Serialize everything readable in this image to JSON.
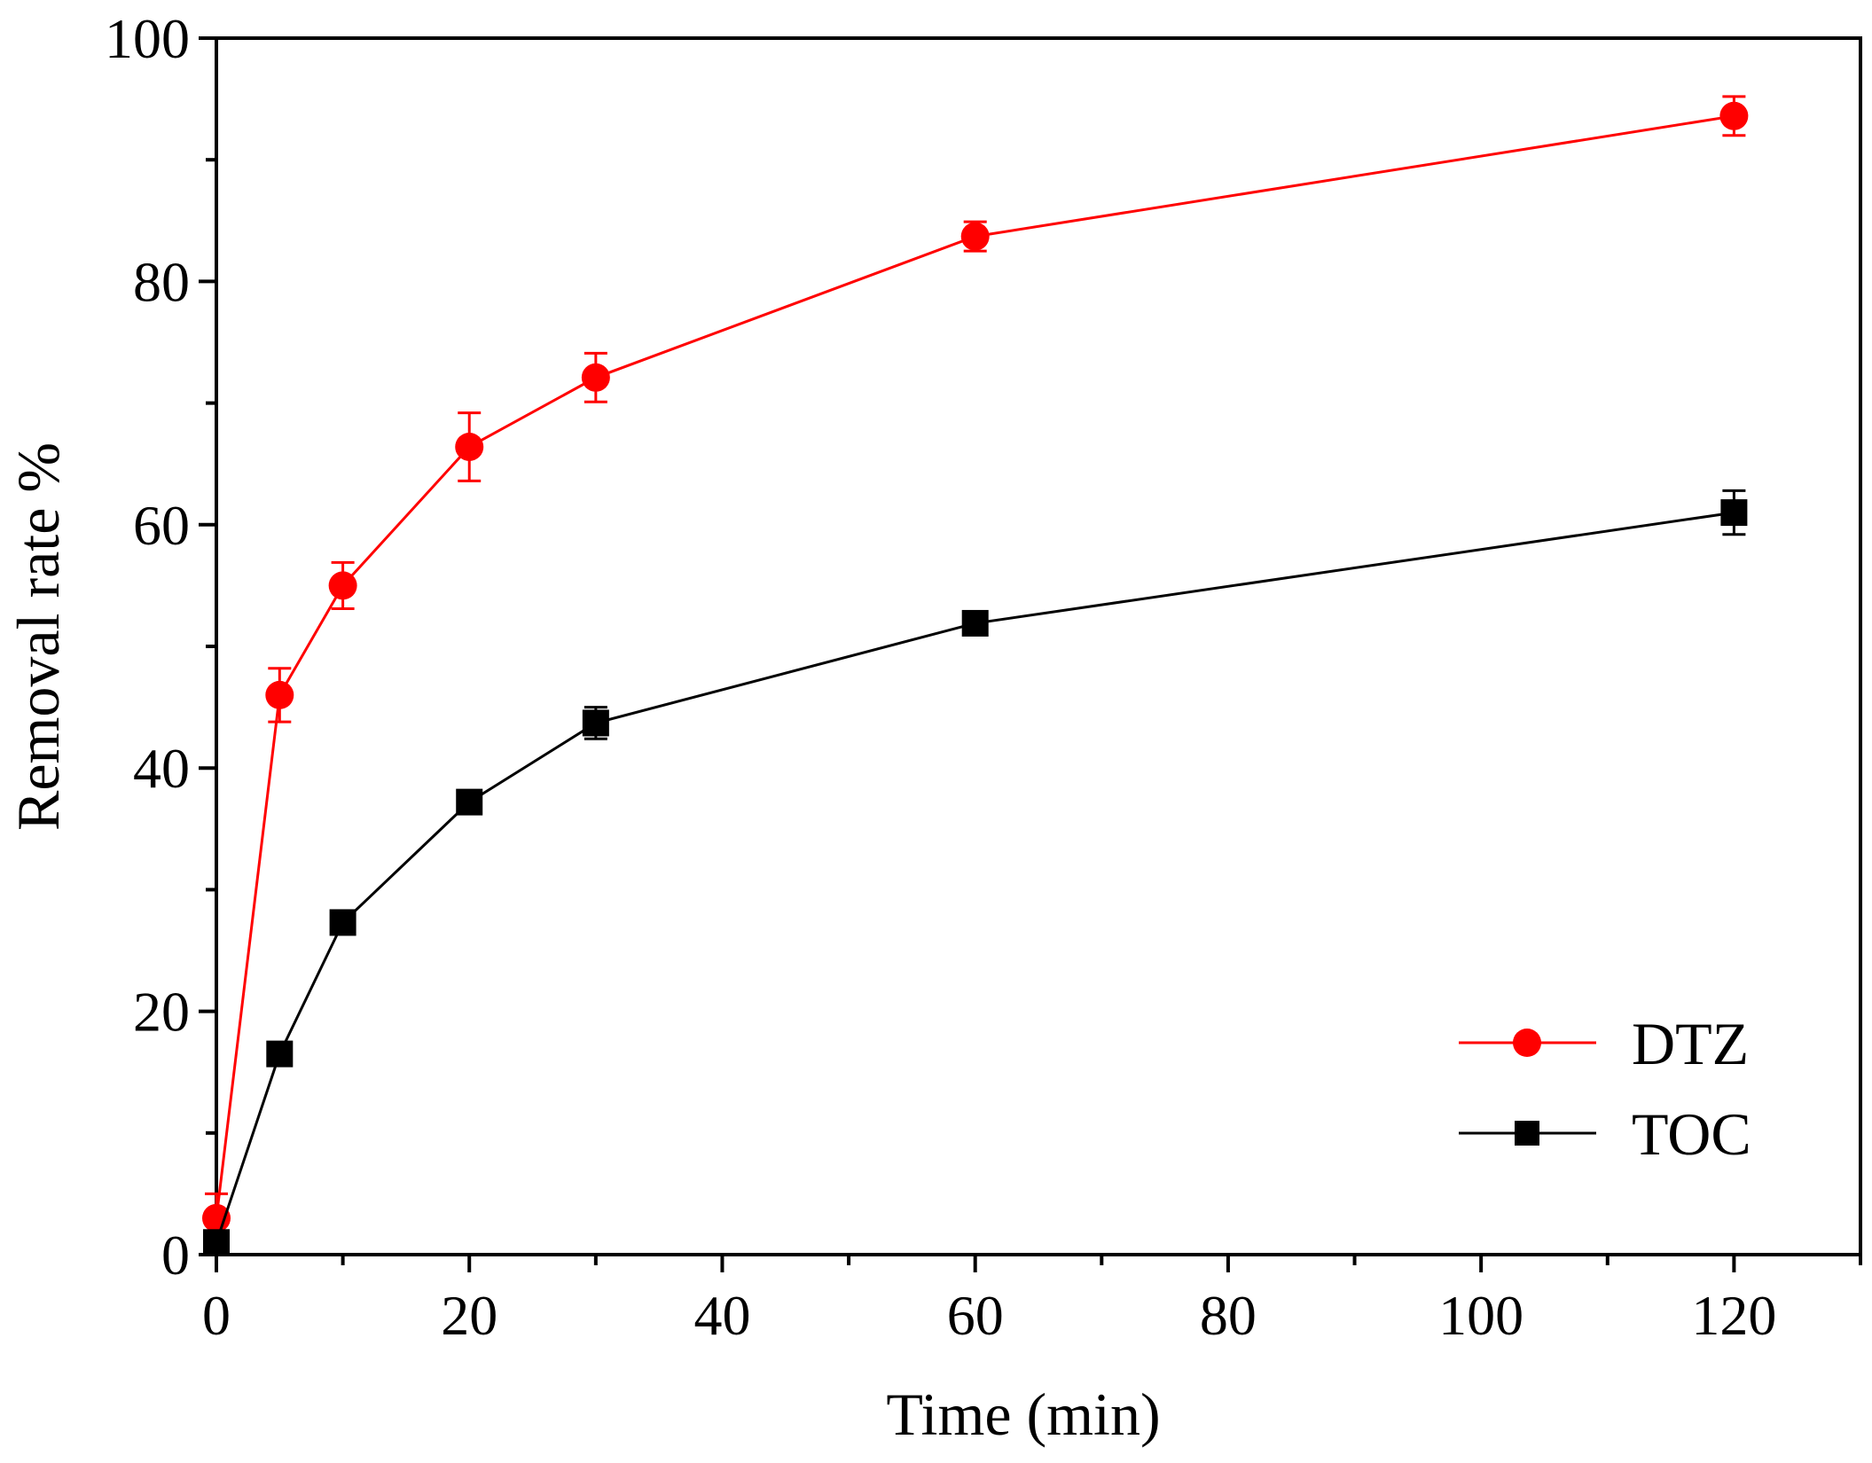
{
  "chart_data": {
    "type": "line",
    "title": "",
    "xlabel": "Time (min)",
    "ylabel": "Removal rate %",
    "xlim": [
      0,
      130
    ],
    "ylim": [
      0,
      100
    ],
    "x_ticks": [
      0,
      20,
      40,
      60,
      80,
      100,
      120
    ],
    "x_tick_labels": [
      "0",
      "20",
      "40",
      "60",
      "80",
      "100",
      "120"
    ],
    "x_minor_ticks": [
      10,
      30,
      50,
      70,
      90,
      110,
      130
    ],
    "y_ticks": [
      0,
      20,
      40,
      60,
      80,
      100
    ],
    "y_tick_labels": [
      "0",
      "20",
      "40",
      "60",
      "80",
      "100"
    ],
    "y_minor_ticks": [
      10,
      30,
      50,
      70,
      90
    ],
    "grid": false,
    "legend_position": "bottom-right",
    "series": [
      {
        "name": "DTZ",
        "color": "#ff0000",
        "marker": "circle",
        "x": [
          0,
          5,
          10,
          20,
          30,
          60,
          120
        ],
        "y": [
          3,
          46,
          55,
          66.4,
          72.1,
          83.7,
          93.6
        ],
        "error": [
          2,
          2.2,
          1.9,
          2.8,
          2,
          1.2,
          1.6
        ]
      },
      {
        "name": "TOC",
        "color": "#000000",
        "marker": "square",
        "x": [
          0,
          5,
          10,
          20,
          30,
          60,
          120
        ],
        "y": [
          1,
          16.5,
          27.3,
          37.2,
          43.7,
          51.9,
          61
        ],
        "error": [
          0.8,
          0.6,
          0.6,
          0.8,
          1.3,
          0.8,
          1.8
        ]
      }
    ]
  }
}
